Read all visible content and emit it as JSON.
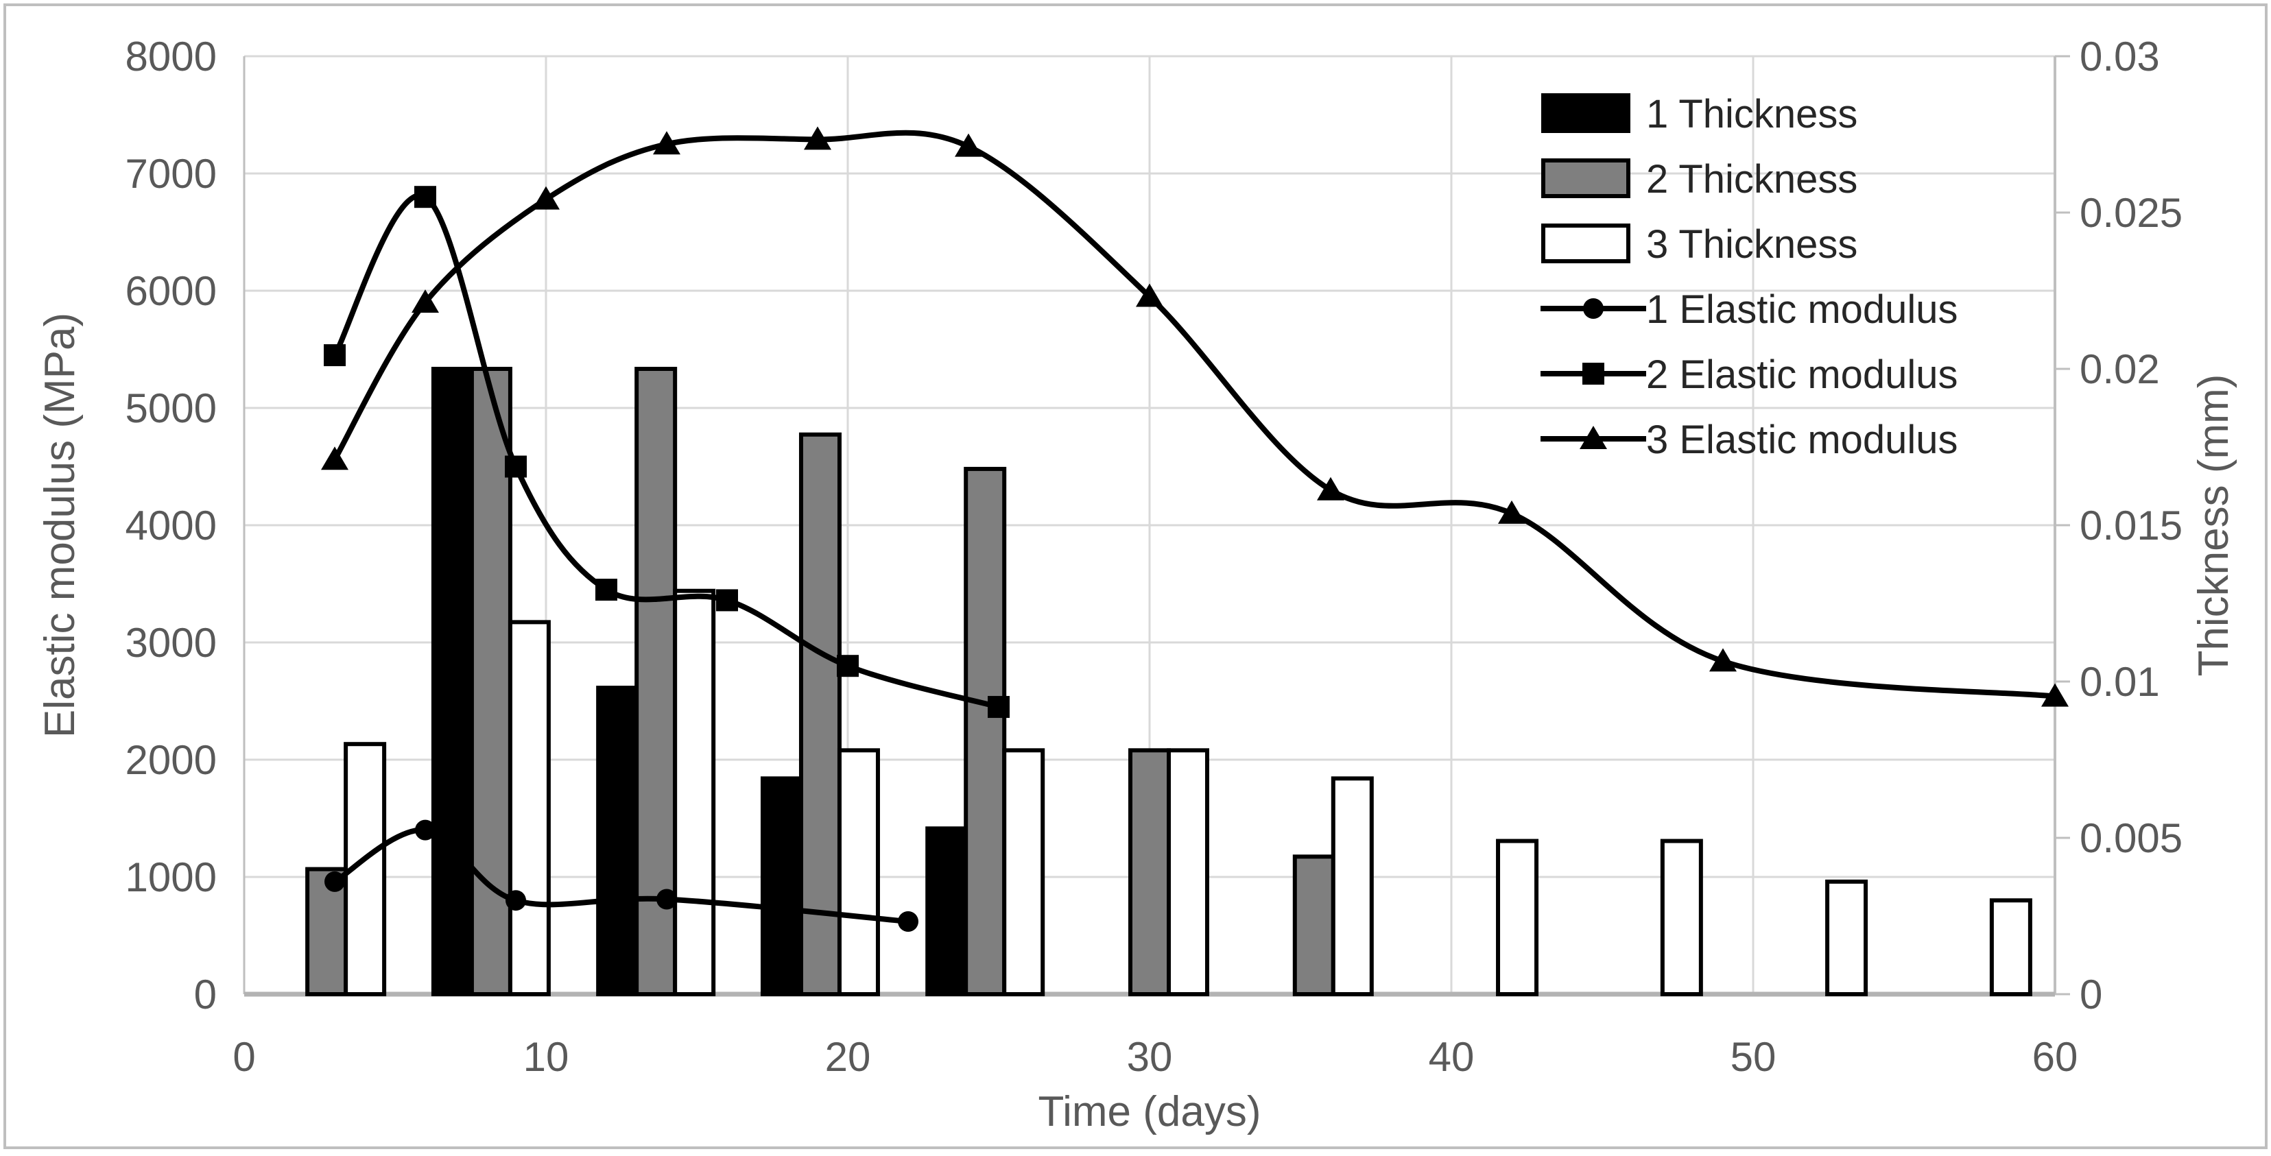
{
  "chart_data": {
    "type": "combo",
    "title": "",
    "x_axis": {
      "label": "Time (days)",
      "range": [
        0,
        60
      ],
      "ticks": [
        0,
        10,
        20,
        30,
        40,
        50,
        60
      ],
      "grid": true
    },
    "y_axis_left": {
      "label": "Elastic modulus (MPa)",
      "range": [
        0,
        8000
      ],
      "ticks": [
        0,
        1000,
        2000,
        3000,
        4000,
        5000,
        6000,
        7000,
        8000
      ],
      "grid": true
    },
    "y_axis_right": {
      "label": "Thickness (mm)",
      "range": [
        0,
        0.03
      ],
      "ticks": [
        0,
        0.005,
        0.01,
        0.015,
        0.02,
        0.025,
        0.03
      ],
      "tick_labels": [
        "0",
        "0.005",
        "0.01",
        "0.015",
        "0.02",
        "0.025",
        "0.03"
      ]
    },
    "legend_position": "top-right-inside",
    "bar_categories_days": [
      2.73,
      8.18,
      13.64,
      19.09,
      24.55,
      30.0,
      35.45,
      40.91,
      46.36,
      51.82,
      57.27
    ],
    "bar_series": [
      {
        "name": "1 Thickness",
        "fill": "#000000",
        "axis": "right",
        "values_mm": [
          null,
          0.02,
          0.0098,
          0.0069,
          0.0053,
          null,
          null,
          null,
          null,
          null,
          null
        ]
      },
      {
        "name": "2 Thickness",
        "fill": "#7f7f7f",
        "axis": "right",
        "values_mm": [
          0.004,
          0.02,
          0.02,
          0.0179,
          0.0168,
          0.0078,
          0.0044,
          null,
          null,
          null,
          null
        ]
      },
      {
        "name": "3 Thickness",
        "fill": "#ffffff",
        "axis": "right",
        "values_mm": [
          0.008,
          0.0119,
          0.0129,
          0.0078,
          0.0078,
          0.0078,
          0.0069,
          0.0049,
          0.0049,
          0.0036,
          0.003
        ]
      }
    ],
    "line_series": [
      {
        "name": "1 Elastic modulus",
        "marker": "circle",
        "axis": "left",
        "points": [
          [
            3,
            960
          ],
          [
            6,
            1400
          ],
          [
            9,
            800
          ],
          [
            14,
            810
          ],
          [
            22,
            620
          ]
        ]
      },
      {
        "name": "2 Elastic modulus",
        "marker": "square",
        "axis": "left",
        "points": [
          [
            3,
            5450
          ],
          [
            6,
            6800
          ],
          [
            9,
            4500
          ],
          [
            12,
            3450
          ],
          [
            16,
            3360
          ],
          [
            20,
            2800
          ],
          [
            25,
            2450
          ]
        ]
      },
      {
        "name": "3 Elastic modulus",
        "marker": "triangle",
        "axis": "left",
        "points": [
          [
            3,
            4560
          ],
          [
            6,
            5900
          ],
          [
            10,
            6780
          ],
          [
            14,
            7250
          ],
          [
            19,
            7290
          ],
          [
            24,
            7230
          ],
          [
            30,
            5950
          ],
          [
            36,
            4300
          ],
          [
            42,
            4100
          ],
          [
            49,
            2840
          ],
          [
            60,
            2540
          ]
        ]
      }
    ],
    "legend": [
      "1 Thickness",
      "2 Thickness",
      "3 Thickness",
      "1 Elastic modulus",
      "2 Elastic modulus",
      "3 Elastic modulus"
    ],
    "colors": {
      "background": "#ffffff",
      "chart_border": "#bfbfbf",
      "gridline": "#d9d9d9",
      "axis_line": "#bfbfbf",
      "axis_line_bottom": "#b3b3b3",
      "tick_text": "#595959",
      "title_text": "#595959",
      "legend_text": "#262626",
      "line_stroke": "#000000",
      "bar_border": "#000000"
    }
  }
}
